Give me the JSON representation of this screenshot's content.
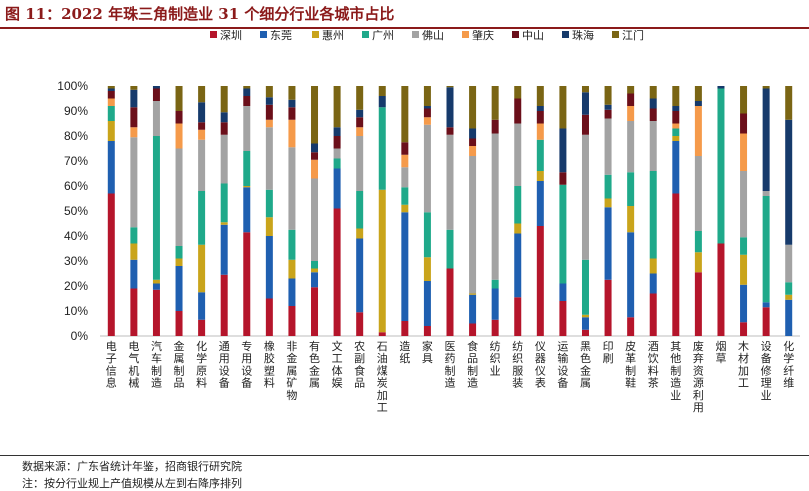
{
  "title": "图 11：2022 年珠三角制造业 31 个细分行业各城市占比",
  "source": "数据来源：广东省统计年鉴，招商银行研究院",
  "note": "注：按分行业规上产值规模从左到右降序排列",
  "colors": {
    "深圳": "#b5152b",
    "东莞": "#1f5fb0",
    "惠州": "#c9a41b",
    "广州": "#1fa98a",
    "佛山": "#a3a3a3",
    "肇庆": "#f59a4a",
    "中山": "#6b0f1a",
    "珠海": "#163a6b",
    "江门": "#7a6514"
  },
  "chart_data": {
    "type": "bar",
    "stacked": true,
    "ylim": [
      0,
      100
    ],
    "yticks": [
      "0%",
      "10%",
      "20%",
      "30%",
      "40%",
      "50%",
      "60%",
      "70%",
      "80%",
      "90%",
      "100%"
    ],
    "categories": [
      "电子信息",
      "电气机械",
      "汽车制造",
      "金属制品",
      "化学原料",
      "通用设备",
      "专用设备",
      "橡胶塑料",
      "非金属矿物",
      "有色金属",
      "文工体娱",
      "农副食品",
      "石油煤炭加工",
      "造纸",
      "家具",
      "医药制造",
      "食品制造",
      "纺织业",
      "纺织服装",
      "仪器仪表",
      "运输设备",
      "黑色金属",
      "印刷",
      "皮革制鞋",
      "酒饮料茶",
      "其他制造业",
      "废弃资源利用",
      "烟草",
      "木材加工",
      "设备修理业",
      "化学纤维"
    ],
    "series": [
      {
        "name": "深圳",
        "values": [
          57,
          19,
          18.5,
          10,
          6.5,
          24.5,
          41.5,
          15,
          12,
          19.5,
          51,
          9.5,
          1.5,
          6,
          4,
          27,
          5,
          6.5,
          15.5,
          44,
          14,
          2.5,
          22.5,
          7.5,
          17,
          57,
          25.5,
          37,
          5.5,
          11.5,
          0
        ]
      },
      {
        "name": "东莞",
        "values": [
          21,
          11.5,
          2.5,
          18,
          11,
          20,
          18,
          25,
          11,
          6,
          16,
          29.5,
          0,
          43.5,
          18,
          0,
          11.5,
          12.5,
          25.5,
          18,
          7,
          5,
          29,
          34,
          8,
          21,
          0,
          0,
          15,
          2,
          14.5
        ]
      },
      {
        "name": "惠州",
        "values": [
          8,
          6.5,
          1.5,
          3,
          19,
          1,
          0.5,
          7.5,
          7.5,
          1.5,
          0,
          4,
          57,
          3,
          9.5,
          0,
          0.5,
          0,
          4,
          4,
          0,
          1,
          3.5,
          10.5,
          6,
          2,
          8,
          0,
          12,
          0,
          2
        ]
      },
      {
        "name": "广州",
        "values": [
          6,
          6.5,
          57.5,
          5,
          21.5,
          15.5,
          14,
          11,
          12,
          3,
          4,
          15,
          33,
          7,
          18,
          15.5,
          0,
          3.5,
          15,
          12.5,
          39.5,
          22,
          9.5,
          13.5,
          35,
          3,
          8.5,
          62,
          7,
          42.5,
          5
        ]
      },
      {
        "name": "佛山",
        "values": [
          0,
          36,
          14,
          39,
          20.5,
          19.5,
          18,
          25,
          33,
          33,
          4,
          22,
          0,
          8,
          35,
          38,
          55,
          58.5,
          25,
          0,
          0,
          50,
          22.5,
          20.5,
          20,
          0,
          30,
          0,
          26.5,
          2,
          15
        ]
      },
      {
        "name": "肇庆",
        "values": [
          3,
          4,
          0,
          10,
          4,
          0,
          0,
          3,
          11,
          7.5,
          0,
          3.5,
          0,
          5,
          3,
          0,
          4,
          0,
          0,
          6.5,
          0,
          0,
          0,
          6,
          0,
          2,
          20,
          0,
          15,
          0,
          0
        ]
      },
      {
        "name": "中山",
        "values": [
          3,
          8,
          5,
          5,
          3,
          5,
          4,
          6,
          5,
          3,
          5,
          4,
          0,
          5,
          3.5,
          3,
          3,
          5.5,
          10,
          5,
          5,
          8,
          3.5,
          5,
          5,
          5,
          0,
          0,
          8,
          0,
          0
        ]
      },
      {
        "name": "珠海",
        "values": [
          1,
          7,
          1,
          0,
          8,
          4,
          3,
          3,
          3,
          3.5,
          3.5,
          3,
          4.5,
          0,
          1,
          16,
          4,
          0,
          0,
          2,
          17.5,
          9,
          2,
          0,
          4,
          2,
          2,
          1,
          0,
          41,
          50
        ]
      },
      {
        "name": "江门",
        "values": [
          1,
          1.5,
          0,
          10,
          6.5,
          10.5,
          1,
          4.5,
          5.5,
          23,
          16.5,
          9.5,
          4,
          22.5,
          8,
          0.5,
          17,
          13.5,
          5,
          8,
          17,
          2.5,
          7.5,
          3,
          5,
          8,
          6,
          0,
          11,
          1,
          13.5
        ]
      }
    ]
  }
}
